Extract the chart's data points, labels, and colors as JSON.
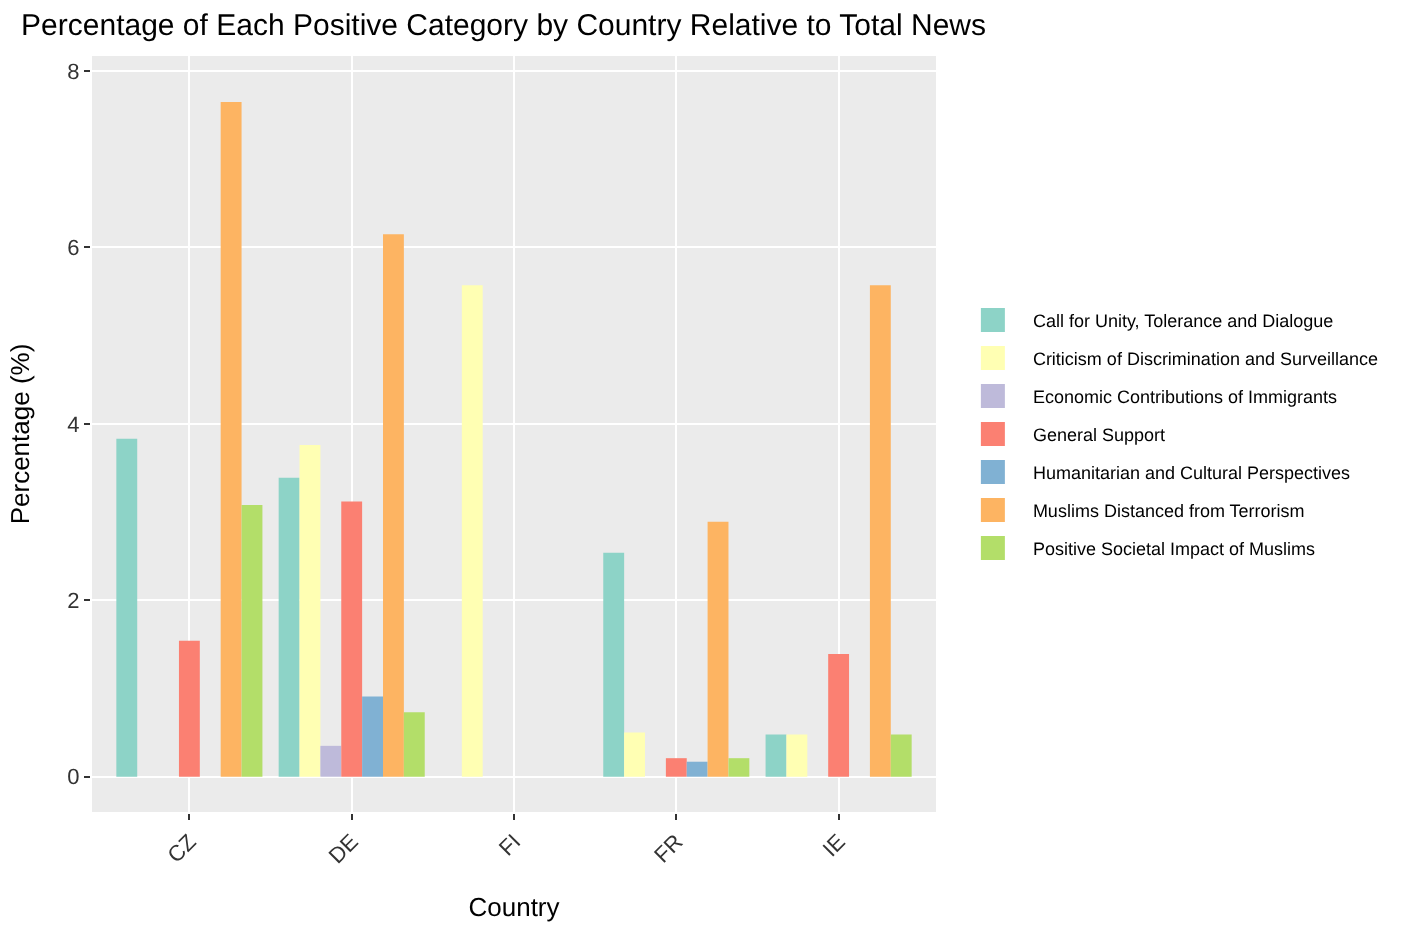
{
  "chart_data": {
    "type": "bar",
    "title": "Percentage of Each Positive Category by Country Relative to Total News",
    "xlabel": "Country",
    "ylabel": "Percentage (%)",
    "categories": [
      "CZ",
      "DE",
      "FI",
      "FR",
      "IE"
    ],
    "series": [
      {
        "name": "Call for Unity, Tolerance and Dialogue",
        "color": "#8dd3c7",
        "values": [
          3.83,
          3.39,
          0,
          2.54,
          0.48
        ]
      },
      {
        "name": "Criticism of Discrimination and Surveillance",
        "color": "#ffffb3",
        "values": [
          0,
          3.76,
          5.57,
          0.5,
          0.48
        ]
      },
      {
        "name": "Economic Contributions of Immigrants",
        "color": "#bebada",
        "values": [
          0,
          0.35,
          0,
          0,
          0
        ]
      },
      {
        "name": "General Support",
        "color": "#fb8072",
        "values": [
          1.54,
          3.12,
          0,
          0.21,
          1.39
        ]
      },
      {
        "name": "Humanitarian and Cultural Perspectives",
        "color": "#80b1d3",
        "values": [
          0,
          0.91,
          0,
          0.17,
          0
        ]
      },
      {
        "name": "Muslims Distanced from Terrorism",
        "color": "#fdb462",
        "values": [
          7.65,
          6.15,
          0,
          2.89,
          5.57
        ]
      },
      {
        "name": "Positive Societal Impact of Muslims",
        "color": "#b3de69",
        "values": [
          3.08,
          0.73,
          0,
          0.21,
          0.48
        ]
      }
    ],
    "ylim": [
      -0.4,
      8.17
    ],
    "yticks": [
      0,
      2,
      4,
      6,
      8
    ],
    "grid": true,
    "legend": "right"
  }
}
